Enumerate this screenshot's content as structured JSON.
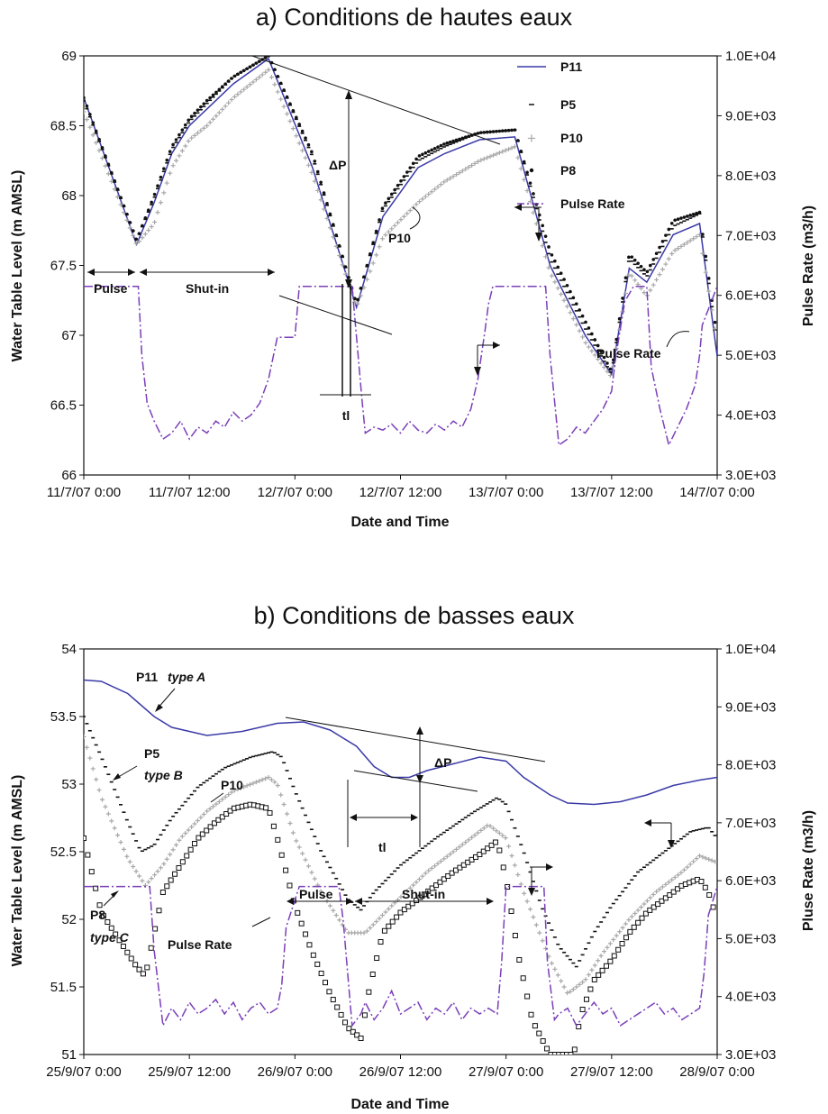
{
  "chart_data": [
    {
      "type": "line",
      "title": "a) Conditions de hautes eaux",
      "xlabel": "Date and Time",
      "ylabel": "Water Table Level (m AMSL)",
      "y2label": "Pulse Rate (m3/h)",
      "x_ticks": [
        "11/7/07 0:00",
        "11/7/07 12:00",
        "12/7/07 0:00",
        "12/7/07 12:00",
        "13/7/07 0:00",
        "13/7/07 12:00",
        "14/7/07 0:00"
      ],
      "xlim_hours": [
        0,
        72
      ],
      "ylim": [
        66,
        69
      ],
      "y_ticks": [
        "66",
        "66.5",
        "67",
        "67.5",
        "68",
        "68.5",
        "69"
      ],
      "y2lim": [
        3000,
        10000
      ],
      "y2_ticks": [
        "3.0E+03",
        "4.0E+03",
        "5.0E+03",
        "6.0E+03",
        "7.0E+03",
        "8.0E+03",
        "9.0E+03",
        "1.0E+04"
      ],
      "legend": [
        "P11",
        "P5",
        "P10",
        "P8",
        "Pulse Rate"
      ],
      "legend_position": "top-right",
      "series": [
        {
          "name": "P11",
          "color": "#3a3aa8",
          "style": "line",
          "x": [
            0,
            6,
            8,
            10,
            12,
            14,
            17,
            21,
            26,
            31,
            34,
            38,
            41,
            45,
            49,
            53,
            57,
            60,
            62,
            64,
            67,
            70,
            72
          ],
          "y": [
            68.7,
            67.65,
            67.95,
            68.3,
            68.5,
            68.62,
            68.8,
            68.98,
            68.2,
            67.2,
            67.85,
            68.2,
            68.3,
            68.4,
            68.42,
            67.5,
            67.0,
            66.72,
            67.48,
            67.38,
            67.72,
            67.8,
            66.85
          ]
        },
        {
          "name": "P5",
          "color": "#111111",
          "style": "dash",
          "x": [
            0,
            6,
            8,
            10,
            12,
            14,
            17,
            21,
            26,
            31,
            34,
            38,
            41,
            45,
            49,
            53,
            57,
            60,
            62,
            64,
            67,
            70,
            72
          ],
          "y": [
            68.68,
            67.68,
            67.98,
            68.33,
            68.53,
            68.66,
            68.85,
            69.0,
            68.28,
            67.22,
            67.9,
            68.25,
            68.35,
            68.45,
            68.47,
            67.55,
            67.05,
            66.72,
            67.55,
            67.42,
            67.78,
            67.87,
            66.92
          ]
        },
        {
          "name": "P10",
          "color": "#a8a8a8",
          "style": "cross",
          "x": [
            0,
            6,
            8,
            10,
            12,
            14,
            17,
            21,
            26,
            31,
            34,
            38,
            41,
            45,
            49,
            53,
            57,
            60,
            62,
            64,
            67,
            70,
            72
          ],
          "y": [
            68.6,
            67.65,
            67.8,
            68.2,
            68.4,
            68.5,
            68.7,
            68.9,
            68.15,
            67.2,
            67.7,
            67.95,
            68.1,
            68.25,
            68.35,
            67.45,
            66.95,
            66.7,
            67.45,
            67.28,
            67.6,
            67.72,
            66.95
          ]
        },
        {
          "name": "P8",
          "color": "#111111",
          "style": "dot",
          "x": [
            0,
            6,
            8,
            10,
            12,
            14,
            17,
            21,
            26,
            31,
            34,
            38,
            41,
            45,
            49,
            53,
            57,
            60,
            62,
            64,
            67,
            70,
            72
          ],
          "y": [
            68.7,
            67.68,
            68.0,
            68.35,
            68.55,
            68.68,
            68.85,
            69.0,
            68.3,
            67.22,
            67.92,
            68.28,
            68.37,
            68.45,
            68.47,
            67.6,
            67.1,
            66.74,
            67.58,
            67.45,
            67.82,
            67.88,
            66.98
          ]
        },
        {
          "name": "Pulse Rate",
          "color": "#7a3fb8",
          "style": "dashdot",
          "axis": "y2",
          "x": [
            0,
            6.2,
            6.6,
            7.2,
            8,
            9,
            10,
            11,
            12,
            13,
            14,
            15,
            16,
            17,
            18,
            19,
            20,
            21,
            22,
            24,
            24.5,
            29,
            30.5,
            31.6,
            32,
            33,
            34,
            35,
            36,
            37,
            38,
            39,
            40,
            41,
            42,
            43,
            44,
            44.8,
            45.6,
            46,
            46.5,
            52.5,
            53,
            54,
            55,
            56,
            57,
            58,
            59,
            60,
            60.5,
            61.5,
            62.5,
            64,
            64.5,
            65.5,
            66.5,
            67.5,
            68.5,
            69.5,
            70,
            70.3,
            72
          ],
          "y": [
            6150,
            6150,
            5000,
            4200,
            3900,
            3600,
            3700,
            3900,
            3600,
            3800,
            3700,
            3900,
            3800,
            4050,
            3900,
            4000,
            4200,
            4600,
            5300,
            5300,
            6150,
            6150,
            6150,
            4300,
            3700,
            3800,
            3750,
            3850,
            3700,
            3900,
            3750,
            3700,
            3850,
            3750,
            3900,
            3800,
            4100,
            4600,
            5400,
            5850,
            6150,
            6150,
            5000,
            3500,
            3600,
            3800,
            3700,
            3900,
            4100,
            4400,
            5000,
            5900,
            6150,
            6150,
            4800,
            4100,
            3500,
            3800,
            4100,
            4500,
            5000,
            5500,
            6150
          ]
        }
      ],
      "annotations": {
        "delta_p": "ΔP",
        "tl": "tl",
        "p10": "P10",
        "pulse": "Pulse",
        "shut_in": "Shut-in",
        "pulse_rate": "Pulse Rate"
      }
    },
    {
      "type": "line",
      "title": "b) Conditions de basses eaux",
      "xlabel": "Date and Time",
      "ylabel": "Water Table Level (m AMSL)",
      "y2label": "Pluse Rate (m3/h)",
      "x_ticks": [
        "25/9/07 0:00",
        "25/9/07 12:00",
        "26/9/07 0:00",
        "26/9/07 12:00",
        "27/9/07 0:00",
        "27/9/07 12:00",
        "28/9/07 0:00"
      ],
      "xlim_hours": [
        0,
        72
      ],
      "ylim": [
        51,
        54
      ],
      "y_ticks": [
        "51",
        "51.5",
        "52",
        "52.5",
        "53",
        "53.5",
        "54"
      ],
      "y2lim": [
        3000,
        10000
      ],
      "y2_ticks": [
        "3.0E+03",
        "4.0E+03",
        "5.0E+03",
        "6.0E+03",
        "7.0E+03",
        "8.0E+03",
        "9.0E+03",
        "1.0E+04"
      ],
      "series": [
        {
          "name": "P11",
          "color": "#3a3aa8",
          "style": "line",
          "x": [
            0,
            2,
            5,
            8,
            10,
            14,
            18,
            22,
            25,
            28,
            31,
            33,
            35,
            37,
            39,
            42,
            45,
            48,
            50,
            53,
            55,
            58,
            61,
            64,
            67,
            70,
            72
          ],
          "y": [
            53.77,
            53.76,
            53.67,
            53.5,
            53.42,
            53.36,
            53.39,
            53.45,
            53.46,
            53.4,
            53.28,
            53.13,
            53.05,
            53.05,
            53.1,
            53.15,
            53.2,
            53.17,
            53.05,
            52.92,
            52.86,
            52.85,
            52.87,
            52.92,
            52.99,
            53.03,
            53.05
          ]
        },
        {
          "name": "P5",
          "color": "#111111",
          "style": "dash",
          "x": [
            0,
            2,
            5,
            6.5,
            8,
            10,
            13,
            16,
            19,
            21.5,
            22.5,
            24,
            27,
            30,
            31.5,
            33,
            36,
            40,
            44,
            47,
            48,
            50,
            52,
            54,
            56,
            58,
            60,
            63,
            66,
            69,
            71,
            72
          ],
          "y": [
            53.5,
            53.2,
            52.72,
            52.5,
            52.55,
            52.75,
            52.98,
            53.12,
            53.2,
            53.24,
            53.2,
            52.95,
            52.5,
            52.15,
            52.07,
            52.2,
            52.4,
            52.6,
            52.78,
            52.9,
            52.85,
            52.5,
            52.1,
            51.8,
            51.65,
            51.9,
            52.1,
            52.35,
            52.5,
            52.65,
            52.68,
            52.6
          ]
        },
        {
          "name": "P10",
          "color": "#a8a8a8",
          "style": "cross",
          "x": [
            0,
            2,
            5,
            7,
            9,
            11,
            14,
            17,
            19,
            21,
            22,
            24,
            27,
            30,
            32,
            35,
            39,
            43,
            46,
            48,
            50,
            53,
            55,
            57,
            59,
            62,
            65,
            68,
            70,
            72
          ],
          "y": [
            53.35,
            52.9,
            52.45,
            52.25,
            52.4,
            52.6,
            52.8,
            52.95,
            53.0,
            53.05,
            53.0,
            52.6,
            52.2,
            51.9,
            51.9,
            52.1,
            52.35,
            52.55,
            52.7,
            52.6,
            52.2,
            51.7,
            51.45,
            51.55,
            51.75,
            52.0,
            52.2,
            52.35,
            52.47,
            52.42
          ]
        },
        {
          "name": "P8",
          "color": "#111111",
          "style": "square",
          "x": [
            0,
            2,
            4,
            6,
            7,
            8,
            9,
            11,
            13,
            15,
            17,
            19,
            21,
            22,
            24,
            26,
            28,
            30,
            31.5,
            32.5,
            34,
            36,
            39,
            42,
            45,
            47,
            48,
            49.5,
            51,
            53,
            55,
            55.7,
            56.5,
            58,
            60,
            62,
            64,
            66,
            68,
            70,
            71,
            72
          ],
          "y": [
            52.6,
            52.05,
            51.85,
            51.65,
            51.58,
            51.9,
            52.2,
            52.4,
            52.6,
            52.72,
            52.82,
            52.85,
            52.82,
            52.6,
            52.1,
            51.75,
            51.45,
            51.2,
            51.12,
            51.5,
            51.9,
            52.05,
            52.2,
            52.35,
            52.48,
            52.58,
            52.3,
            51.7,
            51.25,
            51.0,
            51.0,
            51.0,
            51.3,
            51.55,
            51.7,
            51.9,
            52.05,
            52.15,
            52.25,
            52.3,
            52.2,
            52.0
          ]
        },
        {
          "name": "Pulse Rate",
          "color": "#7a3fb8",
          "style": "dashdot",
          "axis": "y2",
          "x": [
            0,
            7.5,
            8,
            9,
            10,
            11,
            12,
            13,
            14,
            15,
            16,
            17,
            18,
            19,
            20,
            21,
            22,
            22.5,
            23,
            24.5,
            29,
            29.5,
            30.5,
            31.5,
            32,
            33,
            34,
            35,
            36,
            37,
            38,
            39,
            40,
            41,
            42,
            43,
            44,
            45,
            46,
            47,
            47.5,
            48,
            52.3,
            52.7,
            53.5,
            54,
            55,
            56,
            57,
            58,
            59,
            60,
            61,
            62,
            63,
            64,
            65,
            66,
            67,
            68,
            69,
            70,
            70.5,
            71,
            72
          ],
          "y": [
            5900,
            5900,
            4800,
            3500,
            3800,
            3600,
            3900,
            3700,
            3800,
            3950,
            3700,
            3900,
            3600,
            3800,
            3900,
            3700,
            3800,
            4200,
            5200,
            5900,
            5900,
            5300,
            3500,
            3700,
            3900,
            3600,
            3800,
            4100,
            3700,
            3800,
            3900,
            3600,
            3800,
            3700,
            3900,
            3600,
            3800,
            3700,
            3800,
            3700,
            4600,
            5900,
            5900,
            4600,
            3600,
            3700,
            3800,
            3500,
            3700,
            3900,
            3700,
            3800,
            3500,
            3600,
            3700,
            3800,
            3900,
            3700,
            3800,
            3600,
            3700,
            3800,
            4400,
            5400,
            5900
          ]
        }
      ],
      "annotations": {
        "p11_label": "P11",
        "type_a": "type A",
        "p5_label": "P5",
        "type_b": "type B",
        "p10_label": "P10",
        "p8_label": "P8",
        "type_c": "type C",
        "pulse_rate": "Pulse Rate",
        "delta_p": "ΔP",
        "tl": "tl",
        "pulse": "Pulse",
        "shut_in": "Shut-in"
      }
    }
  ]
}
